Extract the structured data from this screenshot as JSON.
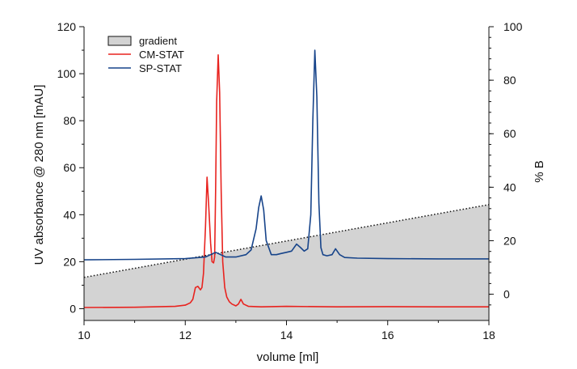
{
  "chart_data": {
    "type": "line",
    "xlabel": "volume [ml]",
    "ylabel": "UV absorbance @ 280 nm [mAU]",
    "y2label": "% B",
    "xlim": [
      10,
      18
    ],
    "ylim": [
      -5,
      120
    ],
    "y2lim": [
      -9.8,
      100
    ],
    "xticks": [
      10,
      12,
      14,
      16,
      18
    ],
    "yticks": [
      0,
      20,
      40,
      60,
      80,
      100,
      120
    ],
    "y2ticks": [
      0,
      20,
      40,
      60,
      80,
      100
    ],
    "legend": {
      "placement": "top-left",
      "entries": [
        "gradient",
        "CM-STAT",
        "SP-STAT"
      ]
    },
    "colors": {
      "gradient_fill": "#d3d3d3",
      "CM-STAT": "#e8231f",
      "SP-STAT": "#17448a"
    },
    "gradient": {
      "name": "gradient",
      "x": [
        10,
        18
      ],
      "y2": [
        6.3,
        33.5
      ]
    },
    "series": [
      {
        "name": "CM-STAT",
        "x": [
          10.0,
          11.0,
          11.8,
          12.0,
          12.1,
          12.15,
          12.2,
          12.25,
          12.3,
          12.33,
          12.36,
          12.4,
          12.43,
          12.46,
          12.5,
          12.53,
          12.56,
          12.58,
          12.6,
          12.62,
          12.65,
          12.68,
          12.71,
          12.74,
          12.78,
          12.82,
          12.87,
          12.92,
          13.0,
          13.05,
          13.1,
          13.15,
          13.25,
          13.5,
          14.0,
          15.0,
          16.0,
          17.0,
          18.0
        ],
        "values": [
          0.5,
          0.6,
          1.0,
          1.5,
          2.5,
          4.0,
          9.0,
          9.5,
          8.0,
          9.0,
          15.0,
          35.0,
          56.0,
          45.0,
          28.0,
          20.0,
          19.5,
          22.0,
          50.0,
          88.0,
          108.0,
          92.0,
          50.0,
          20.0,
          9.0,
          5.0,
          3.0,
          2.0,
          1.2,
          2.0,
          4.0,
          2.0,
          1.0,
          0.8,
          1.0,
          0.8,
          0.9,
          0.8,
          0.8
        ]
      },
      {
        "name": "SP-STAT",
        "x": [
          10.0,
          11.0,
          12.0,
          12.4,
          12.6,
          12.8,
          13.0,
          13.2,
          13.3,
          13.4,
          13.45,
          13.5,
          13.55,
          13.6,
          13.7,
          13.8,
          13.9,
          14.0,
          14.1,
          14.2,
          14.28,
          14.35,
          14.42,
          14.48,
          14.52,
          14.56,
          14.6,
          14.64,
          14.68,
          14.72,
          14.8,
          14.9,
          14.97,
          15.05,
          15.15,
          15.4,
          16.0,
          17.0,
          18.0
        ],
        "values": [
          20.8,
          21.0,
          21.3,
          22.0,
          24.0,
          22.0,
          22.0,
          23.0,
          25.0,
          34.0,
          43.0,
          48.0,
          42.0,
          29.0,
          23.0,
          23.0,
          23.5,
          24.0,
          24.5,
          27.5,
          26.0,
          24.5,
          25.5,
          40.0,
          80.0,
          110.0,
          90.0,
          45.0,
          26.0,
          23.0,
          22.5,
          23.0,
          25.5,
          23.0,
          21.8,
          21.5,
          21.3,
          21.2,
          21.2
        ]
      }
    ]
  }
}
